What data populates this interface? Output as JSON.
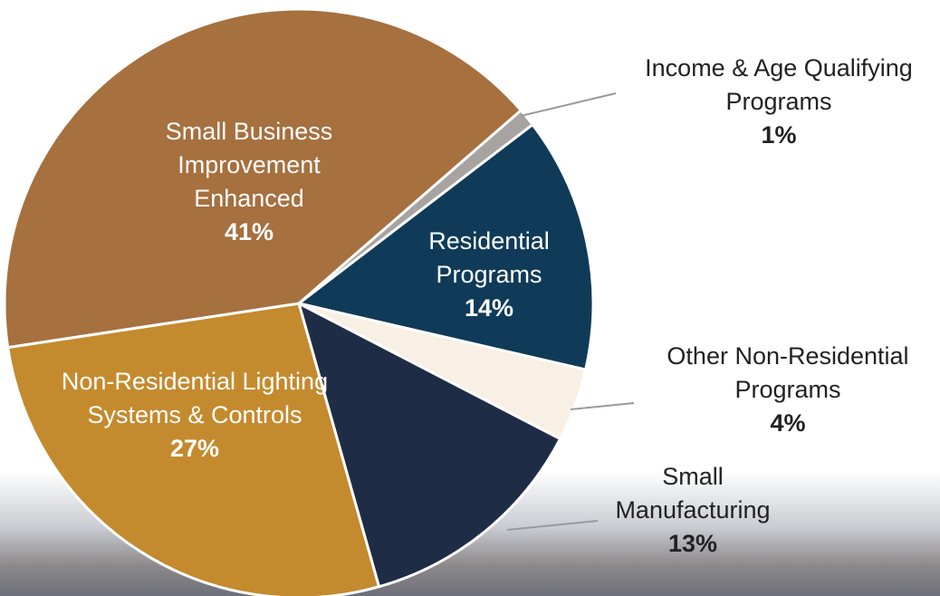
{
  "chart_data": {
    "type": "pie",
    "categories": [
      "Income & Age Qualifying Programs",
      "Residential Programs",
      "Other Non-Residential Programs",
      "Small Manufacturing",
      "Non-Residential Lighting Systems & Controls",
      "Small Business Improvement Enhanced"
    ],
    "values": [
      1,
      14,
      4,
      13,
      27,
      41
    ],
    "value_labels": [
      "1%",
      "14%",
      "4%",
      "13%",
      "27%",
      "41%"
    ],
    "colors": [
      "#a7a3a0",
      "#0f3b58",
      "#f8efe5",
      "#1e2c46",
      "#c48a2e",
      "#a6703f"
    ]
  }
}
